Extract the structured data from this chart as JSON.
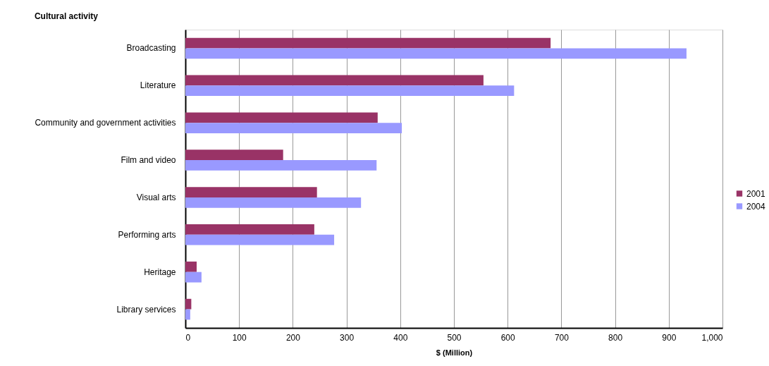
{
  "chart_data": {
    "type": "bar",
    "orientation": "horizontal",
    "title": "Cultural activity",
    "xlabel": "$ (Million)",
    "categories": [
      "Broadcasting",
      "Literature",
      "Community and government activities",
      "Film and video",
      "Visual arts",
      "Performing arts",
      "Heritage",
      "Library services"
    ],
    "series": [
      {
        "name": "2001",
        "color": "#993366",
        "values": [
          680,
          555,
          358,
          182,
          245,
          240,
          21,
          11
        ]
      },
      {
        "name": "2004",
        "color": "#9999ff",
        "values": [
          933,
          612,
          403,
          356,
          327,
          277,
          30,
          9
        ]
      }
    ],
    "xlim": [
      0,
      1000
    ],
    "xticks": [
      0,
      100,
      200,
      300,
      400,
      500,
      600,
      700,
      800,
      900,
      {
        "value": 1000,
        "label": "1,000"
      }
    ],
    "grid": "x",
    "legend": "right"
  }
}
